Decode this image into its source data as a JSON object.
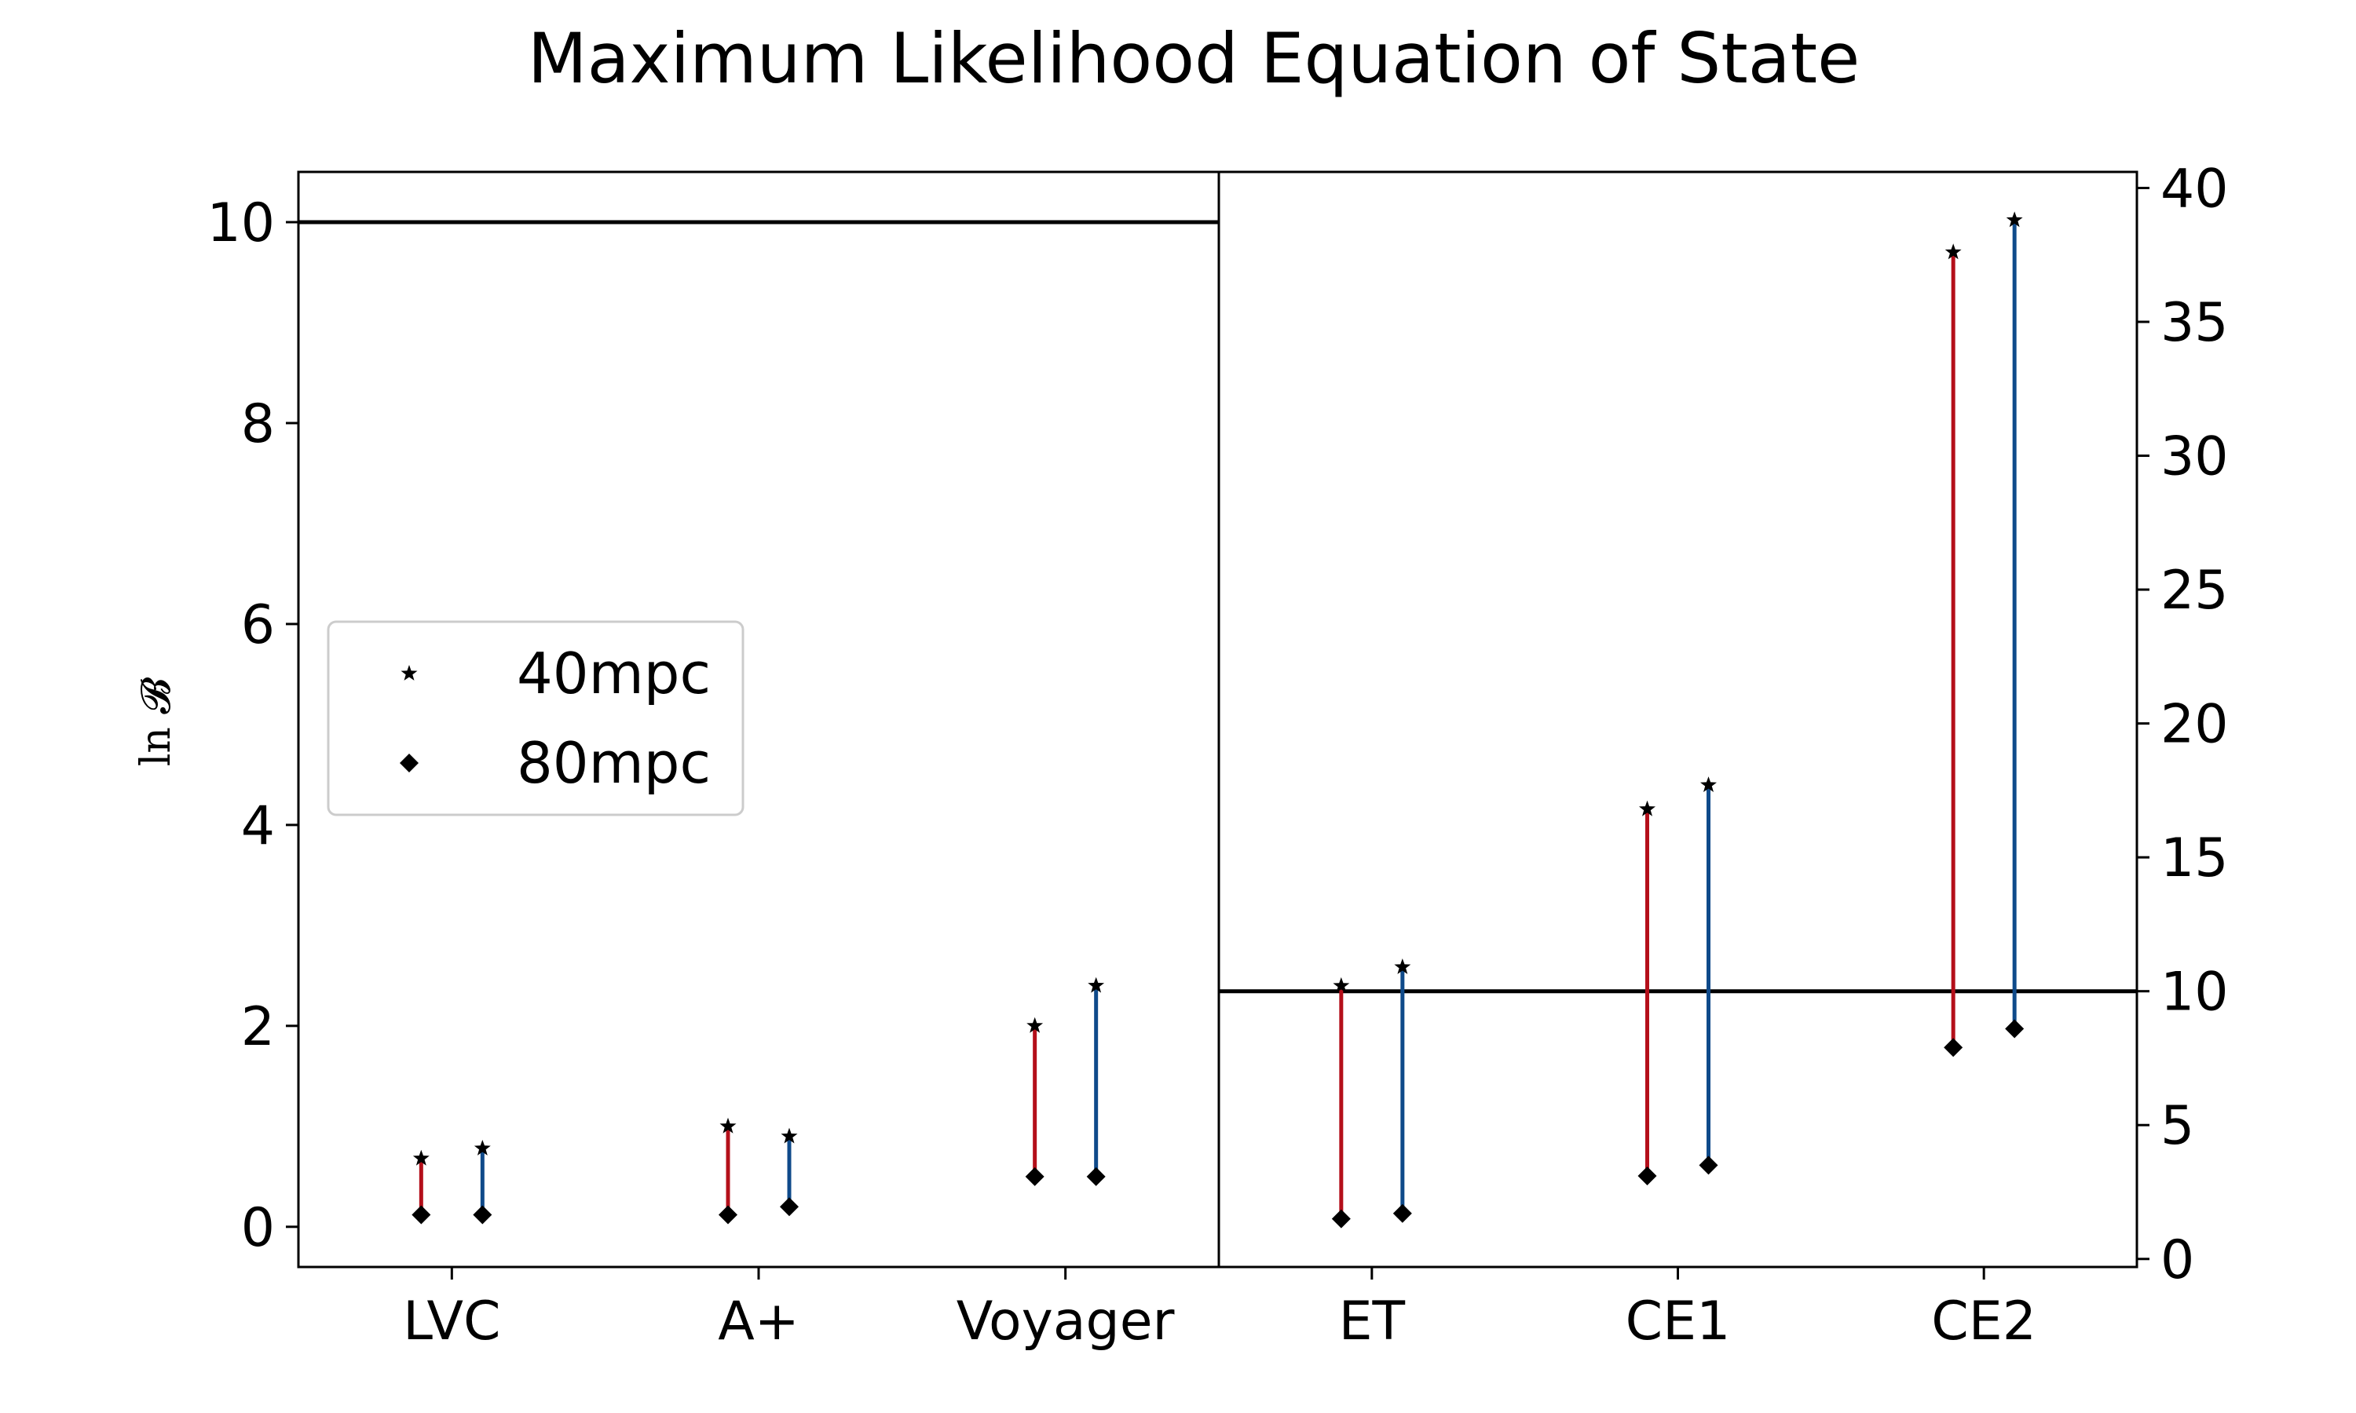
{
  "chart_data": {
    "type": "scatter",
    "title": "Maximum Likelihood Equation of State",
    "ylabel": "ln 𝓑",
    "legend": {
      "placement": "center-left",
      "entries": [
        {
          "label": "40mpc",
          "marker": "star"
        },
        {
          "label": "80mpc",
          "marker": "diamond"
        }
      ]
    },
    "colors": {
      "series_a": "#b40f1a",
      "series_b": "#0f4a8a",
      "marker": "#000000"
    },
    "panels": [
      {
        "name": "left",
        "categories": [
          "LVC",
          "A+",
          "Voyager"
        ],
        "ylim": [
          -0.4,
          10.5
        ],
        "yticks": [
          "0",
          "2",
          "4",
          "6",
          "8",
          "10"
        ],
        "yaxis_side": "left",
        "hline": 10,
        "series": [
          {
            "color": "series_a",
            "star": [
              0.68,
              1.0,
              2.0
            ],
            "diamond": [
              0.12,
              0.12,
              0.5
            ]
          },
          {
            "color": "series_b",
            "star": [
              0.78,
              0.9,
              2.4
            ],
            "diamond": [
              0.12,
              0.2,
              0.5
            ]
          }
        ]
      },
      {
        "name": "right",
        "categories": [
          "ET",
          "CE1",
          "CE2"
        ],
        "ylim": [
          -0.3,
          40.6
        ],
        "yticks": [
          "0",
          "5",
          "10",
          "15",
          "20",
          "25",
          "30",
          "35",
          "40"
        ],
        "yaxis_side": "right",
        "hline": 10,
        "series": [
          {
            "color": "series_a",
            "star": [
              10.2,
              16.8,
              37.6
            ],
            "diamond": [
              1.5,
              3.1,
              7.9
            ]
          },
          {
            "color": "series_b",
            "star": [
              10.9,
              17.7,
              38.8
            ],
            "diamond": [
              1.7,
              3.5,
              8.6
            ]
          }
        ]
      }
    ]
  }
}
